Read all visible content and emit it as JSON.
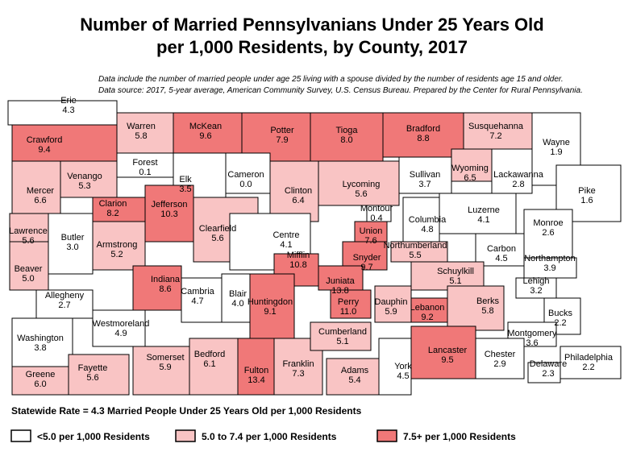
{
  "title": [
    "Number of Married Pennsylvanians Under 25 Years Old",
    "per 1,000 Residents, by County, 2017"
  ],
  "notes": [
    "Data include the number of married people under age 25 living with a spouse divided by the number of residents age 15 and older.",
    "Data source: 2017, 5-year average, American Community Survey, U.S. Census Bureau. Prepared by the Center for Rural Pennsylvania."
  ],
  "counties": [
    {
      "name": "Erie",
      "value": "4.3",
      "color": "#ffffff"
    },
    {
      "name": "Crawford",
      "value": "9.4",
      "color": "#f07878"
    },
    {
      "name": "Warren",
      "value": "5.8",
      "color": "#f9c4c4"
    },
    {
      "name": "McKean",
      "value": "9.6",
      "color": "#f07878"
    },
    {
      "name": "Potter",
      "value": "7.9",
      "color": "#f07878"
    },
    {
      "name": "Tioga",
      "value": "8.0",
      "color": "#f07878"
    },
    {
      "name": "Bradford",
      "value": "8.8",
      "color": "#f07878"
    },
    {
      "name": "Susquehanna",
      "value": "7.2",
      "color": "#f9c4c4"
    },
    {
      "name": "Wayne",
      "value": "1.9",
      "color": "#ffffff"
    },
    {
      "name": "Forest",
      "value": "0.1",
      "color": "#ffffff"
    },
    {
      "name": "Venango",
      "value": "5.3",
      "color": "#f9c4c4"
    },
    {
      "name": "Mercer",
      "value": "6.6",
      "color": "#f9c4c4"
    },
    {
      "name": "Elk",
      "value": "3.5",
      "color": "#ffffff"
    },
    {
      "name": "Cameron",
      "value": "0.0",
      "color": "#ffffff"
    },
    {
      "name": "Clinton",
      "value": "6.4",
      "color": "#f9c4c4"
    },
    {
      "name": "Lycoming",
      "value": "5.6",
      "color": "#f9c4c4"
    },
    {
      "name": "Sullivan",
      "value": "3.7",
      "color": "#ffffff"
    },
    {
      "name": "Wyoming",
      "value": "6.5",
      "color": "#f9c4c4"
    },
    {
      "name": "Lackawanna",
      "value": "2.8",
      "color": "#ffffff"
    },
    {
      "name": "Pike",
      "value": "1.6",
      "color": "#ffffff"
    },
    {
      "name": "Clarion",
      "value": "8.2",
      "color": "#f07878"
    },
    {
      "name": "Jefferson",
      "value": "10.3",
      "color": "#f07878"
    },
    {
      "name": "Lawrence",
      "value": "5.6",
      "color": "#f9c4c4"
    },
    {
      "name": "Butler",
      "value": "3.0",
      "color": "#ffffff"
    },
    {
      "name": "Armstrong",
      "value": "5.2",
      "color": "#f9c4c4"
    },
    {
      "name": "Clearfield",
      "value": "5.6",
      "color": "#f9c4c4"
    },
    {
      "name": "Centre",
      "value": "4.1",
      "color": "#ffffff"
    },
    {
      "name": "Montour",
      "value": "0.4",
      "color": "#ffffff"
    },
    {
      "name": "Union",
      "value": "7.6",
      "color": "#f07878"
    },
    {
      "name": "Columbia",
      "value": "4.8",
      "color": "#ffffff"
    },
    {
      "name": "Luzerne",
      "value": "4.1",
      "color": "#ffffff"
    },
    {
      "name": "Monroe",
      "value": "2.6",
      "color": "#ffffff"
    },
    {
      "name": "Northumberland",
      "value": "5.5",
      "color": "#f9c4c4"
    },
    {
      "name": "Beaver",
      "value": "5.0",
      "color": "#f9c4c4"
    },
    {
      "name": "Carbon",
      "value": "4.5",
      "color": "#ffffff"
    },
    {
      "name": "Snyder",
      "value": "9.7",
      "color": "#f07878"
    },
    {
      "name": "Northampton",
      "value": "3.9",
      "color": "#ffffff"
    },
    {
      "name": "Mifflin",
      "value": "10.8",
      "color": "#f07878"
    },
    {
      "name": "Juniata",
      "value": "13.8",
      "color": "#f07878"
    },
    {
      "name": "Indiana",
      "value": "8.6",
      "color": "#f07878"
    },
    {
      "name": "Allegheny",
      "value": "2.7",
      "color": "#ffffff"
    },
    {
      "name": "Schuylkill",
      "value": "5.1",
      "color": "#f9c4c4"
    },
    {
      "name": "Lehigh",
      "value": "3.2",
      "color": "#ffffff"
    },
    {
      "name": "Cambria",
      "value": "4.7",
      "color": "#ffffff"
    },
    {
      "name": "Blair",
      "value": "4.0",
      "color": "#ffffff"
    },
    {
      "name": "Huntingdon",
      "value": "9.1",
      "color": "#f07878"
    },
    {
      "name": "Perry",
      "value": "11.0",
      "color": "#f07878"
    },
    {
      "name": "Dauphin",
      "value": "5.9",
      "color": "#f9c4c4"
    },
    {
      "name": "Lebanon",
      "value": "9.2",
      "color": "#f07878"
    },
    {
      "name": "Berks",
      "value": "5.8",
      "color": "#f9c4c4"
    },
    {
      "name": "Westmoreland",
      "value": "4.9",
      "color": "#ffffff"
    },
    {
      "name": "Bucks",
      "value": "2.2",
      "color": "#ffffff"
    },
    {
      "name": "Washington",
      "value": "3.8",
      "color": "#ffffff"
    },
    {
      "name": "Montgomery",
      "value": "3.6",
      "color": "#ffffff"
    },
    {
      "name": "Somerset",
      "value": "5.9",
      "color": "#f9c4c4"
    },
    {
      "name": "Bedford",
      "value": "6.1",
      "color": "#f9c4c4"
    },
    {
      "name": "Fulton",
      "value": "13.4",
      "color": "#f07878"
    },
    {
      "name": "Franklin",
      "value": "7.3",
      "color": "#f9c4c4"
    },
    {
      "name": "Cumberland",
      "value": "5.1",
      "color": "#f9c4c4"
    },
    {
      "name": "Adams",
      "value": "5.4",
      "color": "#f9c4c4"
    },
    {
      "name": "York",
      "value": "4.5",
      "color": "#ffffff"
    },
    {
      "name": "Lancaster",
      "value": "9.5",
      "color": "#f07878"
    },
    {
      "name": "Chester",
      "value": "2.9",
      "color": "#ffffff"
    },
    {
      "name": "Delaware",
      "value": "2.3",
      "color": "#ffffff"
    },
    {
      "name": "Philadelphia",
      "value": "2.2",
      "color": "#ffffff"
    },
    {
      "name": "Fayette",
      "value": "5.6",
      "color": "#f9c4c4"
    },
    {
      "name": "Greene",
      "value": "6.0",
      "color": "#f9c4c4"
    }
  ],
  "statewide": "Statewide Rate = 4.3 Married People Under 25 Years Old per 1,000 Residents",
  "legend": [
    {
      "label": "<5.0 per 1,000 Residents",
      "color": "#ffffff"
    },
    {
      "label": "5.0 to 7.4 per 1,000 Residents",
      "color": "#f9c4c4"
    },
    {
      "label": "7.5+ per 1,000 Residents",
      "color": "#f07878"
    }
  ]
}
